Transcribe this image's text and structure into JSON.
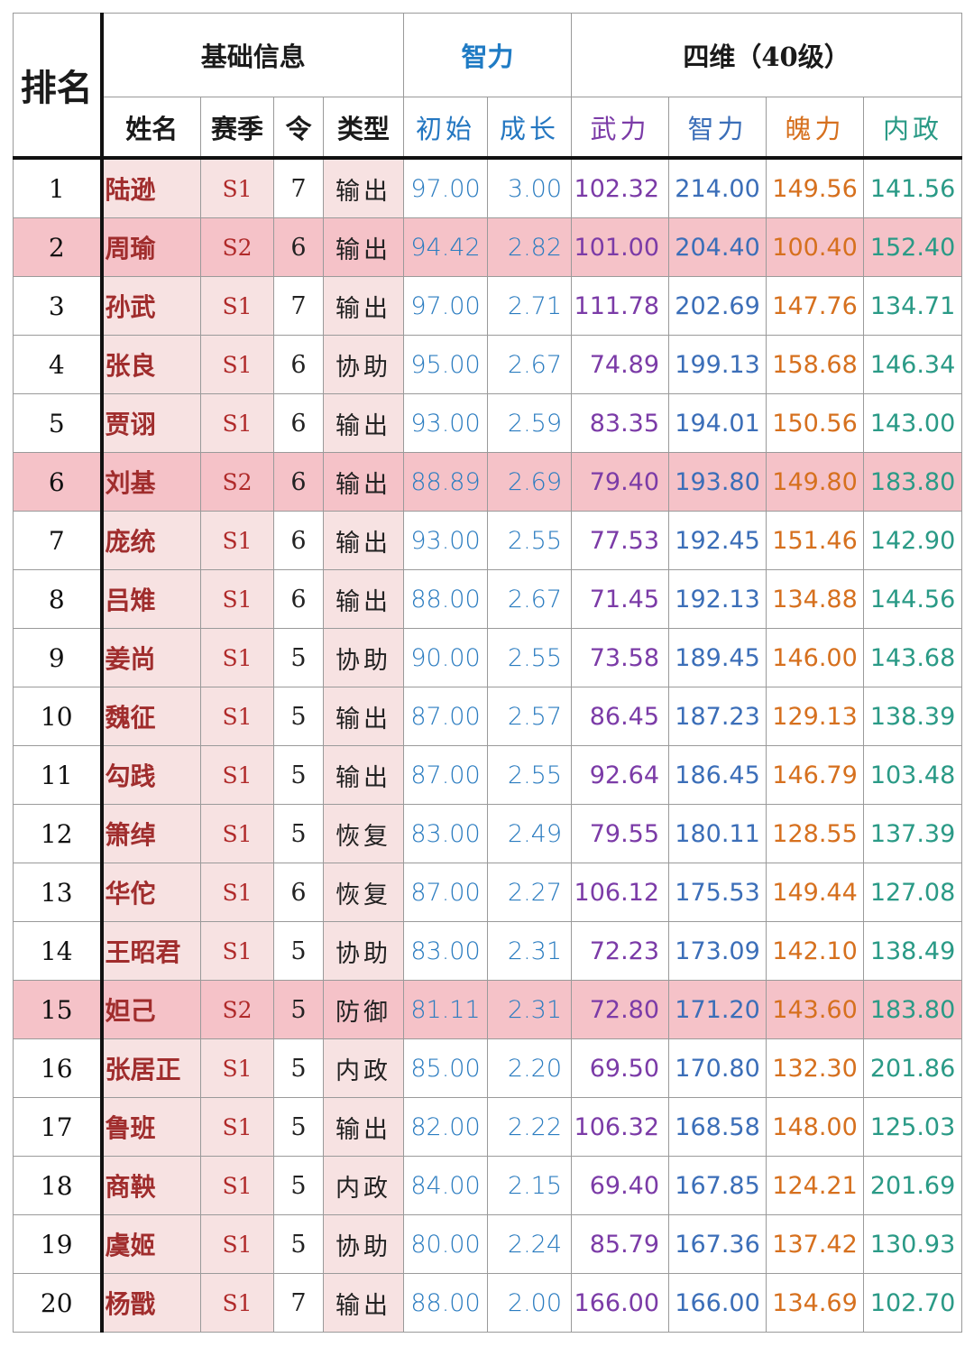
{
  "headers": {
    "rank": "排名",
    "basic": "基础信息",
    "zhili_group": "智力",
    "siwei": "四维（40级）",
    "name": "姓名",
    "season": "赛季",
    "ling": "令",
    "type": "类型",
    "initial": "初始",
    "growth": "成长",
    "wuli": "武力",
    "zhili": "智力",
    "poli": "魄力",
    "neizheng": "内政"
  },
  "colors": {
    "highlight_row": "#f5c2c8",
    "name_bg": "#f7e2e2",
    "zhili_blue": "#2b7cc0",
    "wuli_purple": "#7b3ba7",
    "poli_orange": "#d6701e",
    "neizheng_teal": "#2a9a86"
  },
  "rows": [
    {
      "rank": "1",
      "name": "陆逊",
      "season": "S1",
      "ling": "7",
      "type": "输出",
      "initial": "97.00",
      "growth": "3.00",
      "wuli": "102.32",
      "zhili": "214.00",
      "poli": "149.56",
      "neizheng": "141.56",
      "highlight": false
    },
    {
      "rank": "2",
      "name": "周瑜",
      "season": "S2",
      "ling": "6",
      "type": "输出",
      "initial": "94.42",
      "growth": "2.82",
      "wuli": "101.00",
      "zhili": "204.40",
      "poli": "100.40",
      "neizheng": "152.40",
      "highlight": true
    },
    {
      "rank": "3",
      "name": "孙武",
      "season": "S1",
      "ling": "7",
      "type": "输出",
      "initial": "97.00",
      "growth": "2.71",
      "wuli": "111.78",
      "zhili": "202.69",
      "poli": "147.76",
      "neizheng": "134.71",
      "highlight": false
    },
    {
      "rank": "4",
      "name": "张良",
      "season": "S1",
      "ling": "6",
      "type": "协助",
      "initial": "95.00",
      "growth": "2.67",
      "wuli": "74.89",
      "zhili": "199.13",
      "poli": "158.68",
      "neizheng": "146.34",
      "highlight": false
    },
    {
      "rank": "5",
      "name": "贾诩",
      "season": "S1",
      "ling": "6",
      "type": "输出",
      "initial": "93.00",
      "growth": "2.59",
      "wuli": "83.35",
      "zhili": "194.01",
      "poli": "150.56",
      "neizheng": "143.00",
      "highlight": false
    },
    {
      "rank": "6",
      "name": "刘基",
      "season": "S2",
      "ling": "6",
      "type": "输出",
      "initial": "88.89",
      "growth": "2.69",
      "wuli": "79.40",
      "zhili": "193.80",
      "poli": "149.80",
      "neizheng": "183.80",
      "highlight": true
    },
    {
      "rank": "7",
      "name": "庞统",
      "season": "S1",
      "ling": "6",
      "type": "输出",
      "initial": "93.00",
      "growth": "2.55",
      "wuli": "77.53",
      "zhili": "192.45",
      "poli": "151.46",
      "neizheng": "142.90",
      "highlight": false
    },
    {
      "rank": "8",
      "name": "吕雉",
      "season": "S1",
      "ling": "6",
      "type": "输出",
      "initial": "88.00",
      "growth": "2.67",
      "wuli": "71.45",
      "zhili": "192.13",
      "poli": "134.88",
      "neizheng": "144.56",
      "highlight": false
    },
    {
      "rank": "9",
      "name": "姜尚",
      "season": "S1",
      "ling": "5",
      "type": "协助",
      "initial": "90.00",
      "growth": "2.55",
      "wuli": "73.58",
      "zhili": "189.45",
      "poli": "146.00",
      "neizheng": "143.68",
      "highlight": false
    },
    {
      "rank": "10",
      "name": "魏征",
      "season": "S1",
      "ling": "5",
      "type": "输出",
      "initial": "87.00",
      "growth": "2.57",
      "wuli": "86.45",
      "zhili": "187.23",
      "poli": "129.13",
      "neizheng": "138.39",
      "highlight": false
    },
    {
      "rank": "11",
      "name": "勾践",
      "season": "S1",
      "ling": "5",
      "type": "输出",
      "initial": "87.00",
      "growth": "2.55",
      "wuli": "92.64",
      "zhili": "186.45",
      "poli": "146.79",
      "neizheng": "103.48",
      "highlight": false
    },
    {
      "rank": "12",
      "name": "箫绰",
      "season": "S1",
      "ling": "5",
      "type": "恢复",
      "initial": "83.00",
      "growth": "2.49",
      "wuli": "79.55",
      "zhili": "180.11",
      "poli": "128.55",
      "neizheng": "137.39",
      "highlight": false
    },
    {
      "rank": "13",
      "name": "华佗",
      "season": "S1",
      "ling": "6",
      "type": "恢复",
      "initial": "87.00",
      "growth": "2.27",
      "wuli": "106.12",
      "zhili": "175.53",
      "poli": "149.44",
      "neizheng": "127.08",
      "highlight": false
    },
    {
      "rank": "14",
      "name": "王昭君",
      "season": "S1",
      "ling": "5",
      "type": "协助",
      "initial": "83.00",
      "growth": "2.31",
      "wuli": "72.23",
      "zhili": "173.09",
      "poli": "142.10",
      "neizheng": "138.49",
      "highlight": false
    },
    {
      "rank": "15",
      "name": "妲己",
      "season": "S2",
      "ling": "5",
      "type": "防御",
      "initial": "81.11",
      "growth": "2.31",
      "wuli": "72.80",
      "zhili": "171.20",
      "poli": "143.60",
      "neizheng": "183.80",
      "highlight": true
    },
    {
      "rank": "16",
      "name": "张居正",
      "season": "S1",
      "ling": "5",
      "type": "内政",
      "initial": "85.00",
      "growth": "2.20",
      "wuli": "69.50",
      "zhili": "170.80",
      "poli": "132.30",
      "neizheng": "201.86",
      "highlight": false
    },
    {
      "rank": "17",
      "name": "鲁班",
      "season": "S1",
      "ling": "5",
      "type": "输出",
      "initial": "82.00",
      "growth": "2.22",
      "wuli": "106.32",
      "zhili": "168.58",
      "poli": "148.00",
      "neizheng": "125.03",
      "highlight": false
    },
    {
      "rank": "18",
      "name": "商鞅",
      "season": "S1",
      "ling": "5",
      "type": "内政",
      "initial": "84.00",
      "growth": "2.15",
      "wuli": "69.40",
      "zhili": "167.85",
      "poli": "124.21",
      "neizheng": "201.69",
      "highlight": false
    },
    {
      "rank": "19",
      "name": "虞姬",
      "season": "S1",
      "ling": "5",
      "type": "协助",
      "initial": "80.00",
      "growth": "2.24",
      "wuli": "85.79",
      "zhili": "167.36",
      "poli": "137.42",
      "neizheng": "130.93",
      "highlight": false
    },
    {
      "rank": "20",
      "name": "杨戬",
      "season": "S1",
      "ling": "7",
      "type": "输出",
      "initial": "88.00",
      "growth": "2.00",
      "wuli": "166.00",
      "zhili": "166.00",
      "poli": "134.69",
      "neizheng": "102.70",
      "highlight": false
    }
  ]
}
